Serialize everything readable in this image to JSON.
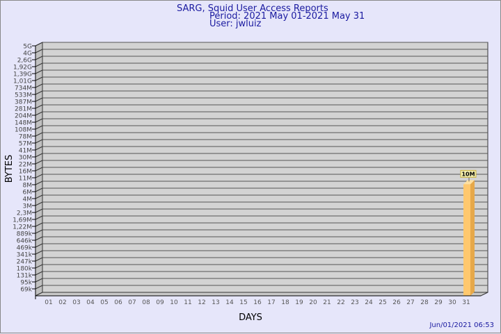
{
  "header": {
    "title": "SARG, Squid User Access Reports",
    "period": "Period: 2021 May 01-2021 May 31",
    "user": "User: jwluiz"
  },
  "footer": {
    "timestamp": "Jun/01/2021 06:53"
  },
  "colors": {
    "background": "#e6e6fa",
    "plot": "#d3d3d3",
    "bar": "#ffc86e",
    "bar_side": "#e6a84a",
    "text": "#1a1aa0"
  },
  "chart_data": {
    "type": "bar",
    "title": "SARG, Squid User Access Reports",
    "xlabel": "DAYS",
    "ylabel": "BYTES",
    "y_scale": "log",
    "y_ticks": [
      "5G",
      "4G",
      "2,6G",
      "1,92G",
      "1,39G",
      "1,01G",
      "734M",
      "533M",
      "387M",
      "281M",
      "204M",
      "148M",
      "108M",
      "78M",
      "57M",
      "41M",
      "30M",
      "22M",
      "16M",
      "11M",
      "8M",
      "6M",
      "4M",
      "3M",
      "2,3M",
      "1,69M",
      "1,22M",
      "889k",
      "646k",
      "469k",
      "341k",
      "247k",
      "180k",
      "131k",
      "95k",
      "69k"
    ],
    "categories": [
      "01",
      "02",
      "03",
      "04",
      "05",
      "06",
      "07",
      "08",
      "09",
      "10",
      "11",
      "12",
      "13",
      "14",
      "15",
      "16",
      "17",
      "18",
      "19",
      "20",
      "21",
      "22",
      "23",
      "24",
      "25",
      "26",
      "27",
      "28",
      "29",
      "30",
      "31"
    ],
    "values": [
      0,
      0,
      0,
      0,
      0,
      0,
      0,
      0,
      0,
      0,
      0,
      0,
      0,
      0,
      0,
      0,
      0,
      0,
      0,
      0,
      0,
      0,
      0,
      0,
      0,
      0,
      0,
      0,
      0,
      0,
      10000000
    ],
    "data_labels": {
      "31": "10M"
    },
    "grid": true
  }
}
